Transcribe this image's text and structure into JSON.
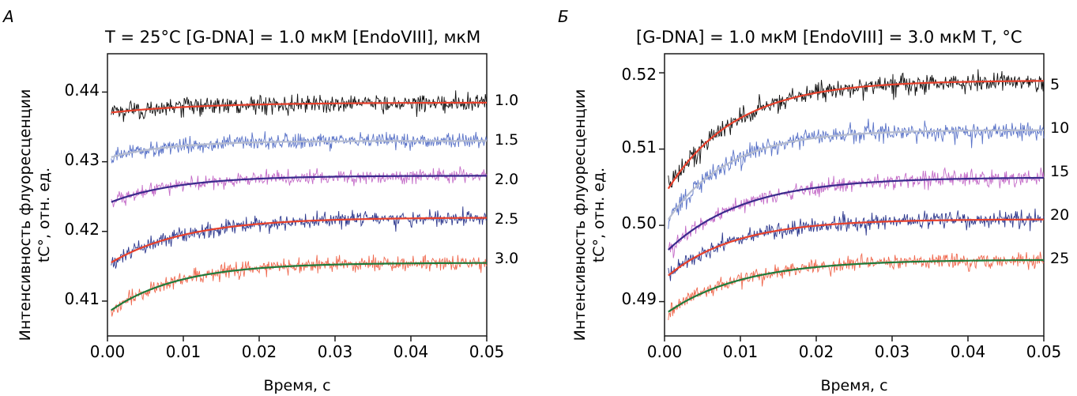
{
  "panels": [
    {
      "letter": "A",
      "header": "T = 25°C   [G-DNA] = 1.0 мкМ   [EndoVIII], мкМ",
      "xlabel": "Время, с",
      "ylabel_line1": "Интенсивность флуоресценции",
      "ylabel_line2": "tC°, отн. ед.",
      "yticks": [
        "0.41",
        "0.42",
        "0.43",
        "0.44"
      ],
      "xticks": [
        "0.00",
        "0.01",
        "0.02",
        "0.03",
        "0.04",
        "0.05"
      ],
      "curve_labels": [
        "1.0",
        "1.5",
        "2.0",
        "2.5",
        "3.0"
      ]
    },
    {
      "letter": "Б",
      "header": "[G-DNA] = 1.0 мкМ  [EndoVIII] = 3.0 мкМ  T, °C",
      "xlabel": "Время, с",
      "ylabel_line1": "Интенсивность флуоресценции",
      "ylabel_line2": "tC°, отн. ед.",
      "yticks": [
        "0.49",
        "0.50",
        "0.51",
        "0.52"
      ],
      "xticks": [
        "0.00",
        "0.01",
        "0.02",
        "0.03",
        "0.04",
        "0.05"
      ],
      "curve_labels": [
        "5",
        "10",
        "15",
        "20",
        "25"
      ]
    }
  ],
  "chart_data": [
    {
      "type": "line",
      "title": "T = 25°C   [G-DNA] = 1.0 мкМ   [EndoVIII], мкМ",
      "xlabel": "Время, с",
      "ylabel": "Интенсивность флуоресценции tC°, отн. ед.",
      "xlim": [
        0.0,
        0.05
      ],
      "ylim": [
        0.405,
        0.4455
      ],
      "xticks": [
        0.0,
        0.01,
        0.02,
        0.03,
        0.04,
        0.05
      ],
      "yticks": [
        0.41,
        0.42,
        0.43,
        0.44
      ],
      "grid": false,
      "series": [
        {
          "name": "1.0",
          "y0": 0.437,
          "yinf": 0.4385,
          "tau": 0.012,
          "noise": 0.0012,
          "raw_color": "#111111",
          "fit_color": "#e8412c"
        },
        {
          "name": "1.5",
          "y0": 0.4305,
          "yinf": 0.433,
          "tau": 0.008,
          "noise": 0.001,
          "raw_color": "#5a73c8",
          "fit_color": "#b5bcd0"
        },
        {
          "name": "2.0",
          "y0": 0.424,
          "yinf": 0.428,
          "tau": 0.009,
          "noise": 0.0009,
          "raw_color": "#c46cc8",
          "fit_color": "#3a2a8c"
        },
        {
          "name": "2.5",
          "y0": 0.4152,
          "yinf": 0.422,
          "tau": 0.01,
          "noise": 0.001,
          "raw_color": "#2f3a8f",
          "fit_color": "#e8412c"
        },
        {
          "name": "3.0",
          "y0": 0.4083,
          "yinf": 0.4155,
          "tau": 0.009,
          "noise": 0.001,
          "raw_color": "#f06a50",
          "fit_color": "#1f7a3a"
        }
      ]
    },
    {
      "type": "line",
      "title": "[G-DNA] = 1.0 мкМ  [EndoVIII] = 3.0 мкМ  T, °C",
      "xlabel": "Время, с",
      "ylabel": "Интенсивность флуоресценции tC°, отн. ед.",
      "xlim": [
        0.0,
        0.05
      ],
      "ylim": [
        0.4855,
        0.5225
      ],
      "xticks": [
        0.0,
        0.01,
        0.02,
        0.03,
        0.04,
        0.05
      ],
      "yticks": [
        0.49,
        0.5,
        0.51,
        0.52
      ],
      "grid": false,
      "series": [
        {
          "name": "5",
          "y0": 0.504,
          "yinf": 0.519,
          "tau": 0.009,
          "noise": 0.0012,
          "raw_color": "#111111",
          "fit_color": "#e8412c"
        },
        {
          "name": "10",
          "y0": 0.5,
          "yinf": 0.5125,
          "tau": 0.008,
          "noise": 0.0011,
          "raw_color": "#5a73c8",
          "fit_color": "#b5bcd0"
        },
        {
          "name": "15",
          "y0": 0.4963,
          "yinf": 0.5063,
          "tau": 0.01,
          "noise": 0.001,
          "raw_color": "#c46cc8",
          "fit_color": "#3a2a8c"
        },
        {
          "name": "20",
          "y0": 0.493,
          "yinf": 0.5008,
          "tau": 0.009,
          "noise": 0.001,
          "raw_color": "#2f3a8f",
          "fit_color": "#e8412c"
        },
        {
          "name": "25",
          "y0": 0.4883,
          "yinf": 0.4955,
          "tau": 0.01,
          "noise": 0.0009,
          "raw_color": "#f06a50",
          "fit_color": "#1f7a3a"
        }
      ]
    }
  ]
}
